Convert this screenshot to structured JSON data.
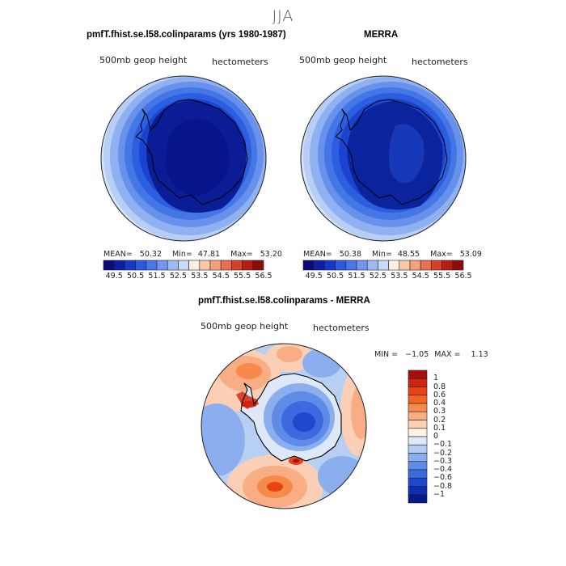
{
  "title": "JJA",
  "panels": {
    "model": {
      "title": "pmfT.fhist.se.l58.colinparams (yrs 1980-1987)",
      "left_label": "500mb geop height",
      "right_label": "hectometers",
      "stats": {
        "mean_label": "MEAN=",
        "mean": "50.32",
        "min_label": "Min=",
        "min": "47.81",
        "max_label": "Max=",
        "max": "53.20"
      }
    },
    "obs": {
      "title": "MERRA",
      "left_label": "500mb geop height",
      "right_label": "hectometers",
      "stats": {
        "mean_label": "MEAN=",
        "mean": "50.38",
        "min_label": "Min=",
        "min": "48.55",
        "max_label": "Max=",
        "max": "53.09"
      }
    },
    "diff": {
      "title": "pmfT.fhist.se.l58.colinparams - MERRA",
      "left_label": "500mb geop height",
      "right_label": "hectometers",
      "stats": {
        "min_label": "MIN =",
        "min": "−1.05",
        "max_label": "MAX =",
        "max": "1.13"
      }
    }
  },
  "abs_colorbar": {
    "colors": [
      "#0a0a7a",
      "#0e1fa6",
      "#1739c9",
      "#2c57e0",
      "#4a76e8",
      "#7397ee",
      "#9db9f3",
      "#c8d9f7",
      "#fdf0e3",
      "#f9c8ab",
      "#f3a07d",
      "#ea6e4f",
      "#d8412a",
      "#b81d14",
      "#8c0d0d"
    ],
    "tick_labels": [
      "49.5",
      "50.5",
      "51.5",
      "52.5",
      "53.5",
      "54.5",
      "55.5",
      "56.5"
    ]
  },
  "diff_colorbar": {
    "colors_top_to_bottom": [
      "#a50f0f",
      "#cf2410",
      "#e84315",
      "#f4661f",
      "#f7894b",
      "#f9ad84",
      "#fbcfb5",
      "#fdf1e4",
      "#dde9f8",
      "#b5cdf4",
      "#8aaeee",
      "#5f8be6",
      "#3b69de",
      "#1f48d0",
      "#0d2db3",
      "#061a8a"
    ],
    "tick_labels": [
      "1",
      "0.8",
      "0.6",
      "0.4",
      "0.3",
      "0.2",
      "0.1",
      "0",
      "−0.1",
      "−0.2",
      "−0.3",
      "−0.4",
      "−0.6",
      "−0.8",
      "−1"
    ]
  }
}
